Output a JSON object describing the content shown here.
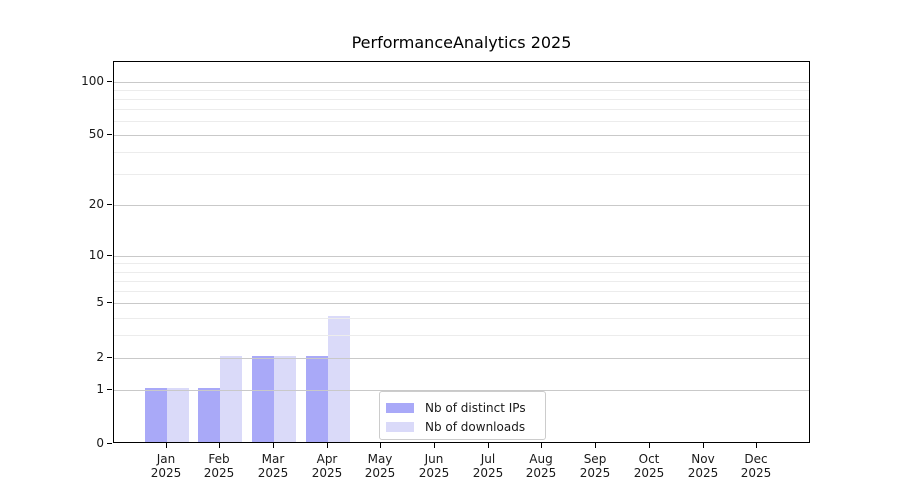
{
  "chart_data": {
    "type": "bar",
    "title": "PerformanceAnalytics 2025",
    "year": "2025",
    "categories": [
      "Jan",
      "Feb",
      "Mar",
      "Apr",
      "May",
      "Jun",
      "Jul",
      "Aug",
      "Sep",
      "Oct",
      "Nov",
      "Dec"
    ],
    "series": [
      {
        "name": "Nb of distinct IPs",
        "color": "#a9a9f8",
        "values": [
          1,
          1,
          2,
          2,
          0,
          0,
          0,
          0,
          0,
          0,
          0,
          0
        ]
      },
      {
        "name": "Nb of downloads",
        "color": "#dadaf9",
        "values": [
          1,
          2,
          2,
          4,
          0,
          0,
          0,
          0,
          0,
          0,
          0,
          0
        ]
      }
    ],
    "y_axis": {
      "scale": "log1p",
      "major_ticks": [
        0,
        1,
        2,
        5,
        10,
        20,
        50,
        100
      ],
      "minor_ticks": [
        3,
        4,
        6,
        7,
        8,
        9,
        30,
        40,
        60,
        70,
        80,
        90
      ],
      "top_value": 113.3
    },
    "x_axis": {
      "tick_label_format": "month-over-year"
    },
    "grid": {
      "major_color": "#c9c9c9",
      "minor_color": "#ececec",
      "grid_above_bars": true
    },
    "legend": {
      "position": "lower-center-inside"
    }
  }
}
